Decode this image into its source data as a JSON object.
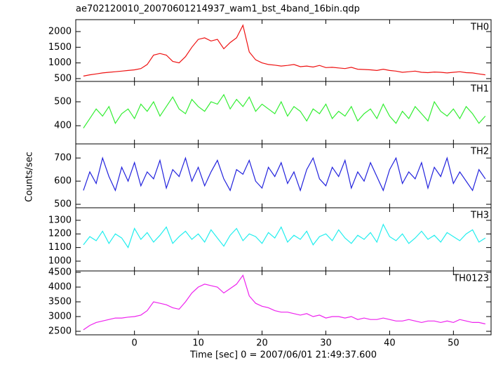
{
  "chart_data": {
    "type": "line",
    "title": "ae702120010_20070601214937_wam1_bst_4band_16bin.qdp",
    "xlabel": "Time [sec] 0 = 2007/06/01 21:49:37.600",
    "ylabel": "Counts/sec",
    "x": [
      -8,
      -7,
      -6,
      -5,
      -4,
      -3,
      -2,
      -1,
      0,
      1,
      2,
      3,
      4,
      5,
      6,
      7,
      8,
      9,
      10,
      11,
      12,
      13,
      14,
      15,
      16,
      17,
      18,
      19,
      20,
      21,
      22,
      23,
      24,
      25,
      26,
      27,
      28,
      29,
      30,
      31,
      32,
      33,
      34,
      35,
      36,
      37,
      38,
      39,
      40,
      41,
      42,
      43,
      44,
      45,
      46,
      47,
      48,
      49,
      50,
      51,
      52,
      53,
      54,
      55
    ],
    "xlim": [
      -9.2,
      55.9
    ],
    "xticks": [
      0,
      10,
      20,
      30,
      40,
      50
    ],
    "series": [
      {
        "name": "TH0",
        "color": "#ee1111",
        "ylim": [
          410,
          2380
        ],
        "yticks": [
          500,
          1000,
          1500,
          2000
        ],
        "values": [
          580,
          620,
          650,
          680,
          700,
          720,
          740,
          760,
          780,
          820,
          950,
          1250,
          1300,
          1250,
          1050,
          1000,
          1200,
          1500,
          1750,
          1800,
          1700,
          1750,
          1450,
          1650,
          1800,
          2200,
          1350,
          1100,
          1000,
          950,
          930,
          900,
          920,
          950,
          880,
          900,
          870,
          920,
          850,
          860,
          840,
          820,
          860,
          800,
          790,
          780,
          760,
          800,
          760,
          740,
          700,
          720,
          740,
          700,
          690,
          710,
          700,
          680,
          700,
          720,
          690,
          680,
          650,
          620
        ]
      },
      {
        "name": "TH1",
        "color": "#33ee33",
        "ylim": [
          324,
          585
        ],
        "yticks": [
          400,
          500
        ],
        "values": [
          390,
          430,
          470,
          440,
          480,
          410,
          450,
          470,
          430,
          490,
          460,
          500,
          440,
          480,
          520,
          470,
          450,
          510,
          480,
          460,
          500,
          490,
          530,
          470,
          510,
          480,
          520,
          460,
          490,
          470,
          450,
          500,
          440,
          480,
          460,
          420,
          470,
          450,
          490,
          430,
          460,
          440,
          480,
          420,
          450,
          470,
          430,
          490,
          440,
          410,
          460,
          430,
          480,
          450,
          420,
          500,
          460,
          440,
          470,
          430,
          480,
          450,
          410,
          440
        ]
      },
      {
        "name": "TH2",
        "color": "#2222dd",
        "ylim": [
          485,
          761
        ],
        "yticks": [
          500,
          600,
          700
        ],
        "values": [
          560,
          640,
          590,
          700,
          620,
          560,
          660,
          600,
          680,
          580,
          640,
          610,
          690,
          570,
          650,
          620,
          700,
          600,
          660,
          580,
          640,
          690,
          610,
          560,
          650,
          630,
          690,
          600,
          570,
          660,
          620,
          680,
          590,
          640,
          560,
          650,
          700,
          610,
          580,
          660,
          620,
          690,
          570,
          640,
          600,
          680,
          620,
          560,
          650,
          700,
          590,
          640,
          610,
          680,
          570,
          660,
          620,
          700,
          590,
          640,
          600,
          560,
          650,
          610
        ]
      },
      {
        "name": "TH3",
        "color": "#22eeee",
        "ylim": [
          928,
          1392
        ],
        "yticks": [
          1000,
          1100,
          1200,
          1300
        ],
        "values": [
          1120,
          1180,
          1150,
          1220,
          1130,
          1200,
          1170,
          1100,
          1240,
          1160,
          1210,
          1140,
          1190,
          1250,
          1130,
          1180,
          1220,
          1160,
          1200,
          1140,
          1230,
          1170,
          1110,
          1190,
          1240,
          1150,
          1200,
          1180,
          1130,
          1210,
          1170,
          1250,
          1140,
          1190,
          1160,
          1220,
          1120,
          1180,
          1200,
          1150,
          1230,
          1170,
          1130,
          1190,
          1160,
          1210,
          1140,
          1270,
          1180,
          1150,
          1200,
          1130,
          1170,
          1220,
          1160,
          1190,
          1140,
          1210,
          1180,
          1150,
          1200,
          1230,
          1140,
          1170
        ]
      },
      {
        "name": "TH0123",
        "color": "#ee22ee",
        "ylim": [
          2381,
          4548
        ],
        "yticks": [
          2500,
          3000,
          3500,
          4000,
          4500
        ],
        "values": [
          2550,
          2700,
          2800,
          2850,
          2900,
          2950,
          2950,
          2980,
          3000,
          3050,
          3200,
          3500,
          3450,
          3400,
          3300,
          3250,
          3500,
          3800,
          4000,
          4100,
          4050,
          4000,
          3800,
          3950,
          4100,
          4400,
          3700,
          3450,
          3350,
          3300,
          3200,
          3150,
          3150,
          3100,
          3050,
          3100,
          3000,
          3050,
          2950,
          3000,
          3000,
          2950,
          3000,
          2900,
          2950,
          2900,
          2900,
          2950,
          2900,
          2850,
          2850,
          2900,
          2850,
          2800,
          2850,
          2850,
          2800,
          2850,
          2800,
          2900,
          2850,
          2800,
          2800,
          2750
        ]
      }
    ]
  }
}
